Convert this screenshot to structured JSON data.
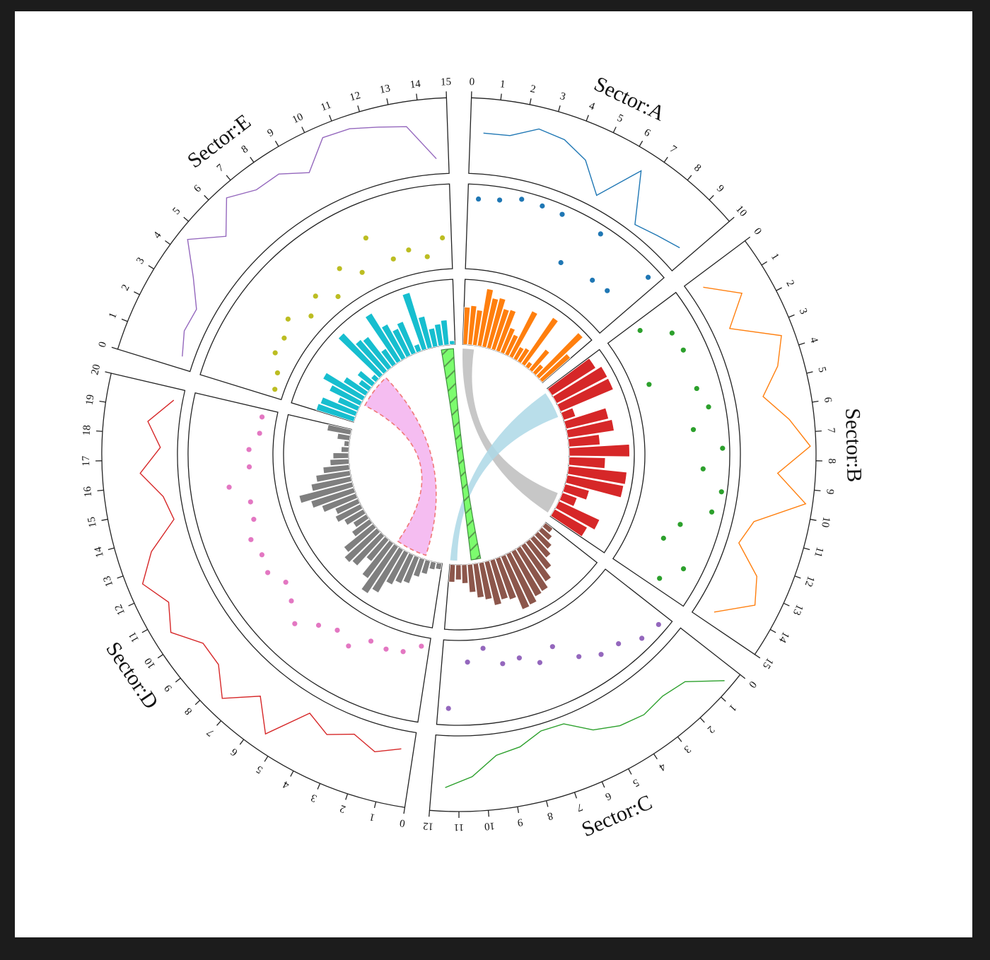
{
  "chart_data": {
    "type": "circos",
    "title": "",
    "sectors": [
      {
        "id": "A",
        "label": "Sector:A",
        "range": [
          0,
          10
        ],
        "ticks": [
          "0",
          "1",
          "2",
          "3",
          "4",
          "5",
          "6",
          "7",
          "8",
          "9",
          "10"
        ],
        "colors": {
          "line": "#1f77b4",
          "points": "#1f77b4",
          "bars": "#ff7f0e"
        },
        "line": {
          "x": [
            0.5,
            1.5,
            2.5,
            3.5,
            4.5,
            5.5,
            6.5,
            7.5,
            8.5,
            9.5
          ],
          "y": [
            55,
            56,
            75,
            70,
            52,
            10,
            78,
            4,
            13,
            24
          ]
        },
        "points": {
          "x": [
            0.5,
            1.5,
            2.5,
            3.5,
            4.5,
            5.5,
            6.5,
            7.5,
            8.5,
            9.5
          ],
          "y": [
            88,
            90,
            97,
            96,
            95,
            35,
            96,
            38,
            40,
            92
          ]
        },
        "bars": {
          "values": [
            60,
            63,
            57,
            93,
            80,
            83,
            68,
            70,
            43,
            35,
            82,
            22,
            25,
            90,
            10,
            42,
            18,
            97,
            60
          ]
        }
      },
      {
        "id": "B",
        "label": "Sector:B",
        "range": [
          0,
          15
        ],
        "ticks": [
          "0",
          "1",
          "2",
          "3",
          "4",
          "5",
          "6",
          "7",
          "8",
          "9",
          "10",
          "11",
          "12",
          "13",
          "14",
          "15"
        ],
        "colors": {
          "line": "#ff7f0e",
          "points": "#2ca02c",
          "bars": "#d62728"
        },
        "line": {
          "x": [
            0.5,
            1.5,
            2.5,
            3.5,
            4.5,
            5.5,
            6.5,
            7.5,
            8.5,
            9.5,
            10.5,
            11.5,
            12.5,
            13.5,
            14.5
          ],
          "y": [
            14,
            60,
            18,
            88,
            68,
            35,
            70,
            100,
            50,
            98,
            24,
            10,
            54,
            70,
            20
          ]
        },
        "points": {
          "x": [
            0.5,
            1.5,
            2.5,
            3.5,
            4.5,
            5.5,
            6.5,
            7.5,
            8.5,
            9.5,
            10.5,
            11.5,
            12.5,
            13.5,
            14.5
          ],
          "y": [
            38,
            73,
            76,
            15,
            75,
            85,
            60,
            98,
            72,
            100,
            92,
            55,
            40,
            82,
            60
          ]
        },
        "bars": {
          "values": [
            83,
            92,
            92,
            20,
            70,
            75,
            50,
            97,
            58,
            94,
            92,
            40,
            25,
            72,
            60
          ]
        }
      },
      {
        "id": "C",
        "label": "Sector:C",
        "range": [
          0,
          12
        ],
        "ticks": [
          "0",
          "1",
          "2",
          "3",
          "4",
          "5",
          "6",
          "7",
          "8",
          "9",
          "10",
          "11",
          "12"
        ],
        "colors": {
          "line": "#2ca02c",
          "points": "#9467bd",
          "bars": "#8c564b"
        },
        "line": {
          "x": [
            0.5,
            1.5,
            2.5,
            3.5,
            4.5,
            5.5,
            6.5,
            7.5,
            8.5,
            9.5,
            10.5,
            11.5
          ],
          "y": [
            96,
            52,
            45,
            50,
            44,
            30,
            3,
            2,
            18,
            25,
            55,
            72
          ]
        },
        "points": {
          "x": [
            0.5,
            1.5,
            2.5,
            3.5,
            4.5,
            5.5,
            6.5,
            7.5,
            8.5,
            9.5,
            10.5,
            11.5
          ],
          "y": [
            96,
            92,
            76,
            73,
            59,
            30,
            43,
            28,
            30,
            5,
            22,
            85
          ]
        },
        "bars": {
          "values": [
            15,
            22,
            31,
            40,
            55,
            70,
            80,
            82,
            90,
            92,
            70,
            66,
            72,
            60,
            55,
            45,
            30,
            24,
            28
          ]
        }
      },
      {
        "id": "D",
        "label": "Sector:D",
        "range": [
          0,
          20
        ],
        "ticks": [
          "0",
          "1",
          "2",
          "3",
          "4",
          "5",
          "6",
          "7",
          "8",
          "9",
          "10",
          "11",
          "12",
          "13",
          "14",
          "15",
          "16",
          "17",
          "18",
          "19",
          "20"
        ],
        "colors": {
          "line": "#d62728",
          "points": "#e377c2",
          "bars": "#7f7f7f"
        },
        "line": {
          "x": [
            0.5,
            1.5,
            2.5,
            3.5,
            4.5,
            5.5,
            6.5,
            7.5,
            8.5,
            9.5,
            10.5,
            11.5,
            12.5,
            13.5,
            14.5,
            15.5,
            16.5,
            17.5,
            18.5,
            19.5
          ],
          "y": [
            20,
            34,
            18,
            35,
            18,
            82,
            40,
            82,
            50,
            48,
            80,
            60,
            85,
            55,
            8,
            18,
            50,
            18,
            40,
            5
          ]
        },
        "points": {
          "x": [
            0.5,
            1.5,
            2.5,
            3.5,
            4.5,
            5.5,
            6.5,
            7.5,
            8.5,
            9.5,
            10.5,
            11.5,
            12.5,
            13.5,
            14.5,
            15.5,
            16.5,
            17.5,
            18.5,
            19.5
          ],
          "y": [
            5,
            18,
            22,
            20,
            40,
            30,
            40,
            60,
            42,
            32,
            45,
            40,
            45,
            32,
            30,
            55,
            25,
            25,
            12,
            12
          ]
        },
        "bars": {
          "values": [
            10,
            12,
            22,
            30,
            45,
            50,
            58,
            80,
            90,
            70,
            45,
            65,
            70,
            60,
            35,
            25,
            35,
            45,
            40,
            58,
            72,
            88,
            65,
            55,
            42,
            30,
            25,
            12,
            8,
            20,
            38
          ]
        }
      },
      {
        "id": "E",
        "label": "Sector:E",
        "range": [
          0,
          15
        ],
        "ticks": [
          "0",
          "1",
          "2",
          "3",
          "4",
          "5",
          "6",
          "7",
          "8",
          "9",
          "10",
          "11",
          "12",
          "13",
          "14",
          "15"
        ],
        "colors": {
          "line": "#9467bd",
          "points": "#bcbd22",
          "bars": "#17becf"
        },
        "line": {
          "x": [
            0.5,
            1.5,
            2.5,
            3.5,
            4.5,
            5.5,
            6.5,
            7.5,
            8.5,
            9.5,
            10.5,
            11.5,
            12.5,
            13.5,
            14.5
          ],
          "y": [
            10,
            22,
            20,
            50,
            92,
            50,
            92,
            72,
            72,
            50,
            90,
            88,
            78,
            70,
            15
          ]
        },
        "points": {
          "x": [
            0.5,
            1.5,
            2.5,
            3.5,
            4.5,
            5.5,
            6.5,
            7.5,
            8.5,
            9.5,
            10.5,
            11.5,
            12.5,
            13.5,
            14.5
          ],
          "y": [
            5,
            10,
            25,
            25,
            36,
            15,
            30,
            10,
            40,
            20,
            60,
            20,
            26,
            12,
            35
          ]
        },
        "bars": {
          "values": [
            63,
            60,
            35,
            55,
            73,
            42,
            20,
            30,
            10,
            92,
            66,
            62,
            30,
            90,
            62,
            48,
            55,
            12,
            95,
            52,
            30,
            35,
            40,
            6
          ]
        }
      }
    ],
    "links": [
      {
        "from": {
          "sector": "A",
          "range": [
            0,
            1.3
          ]
        },
        "to": {
          "sector": "B",
          "range": [
            12.3,
            14.8
          ]
        },
        "color": "#bdbdbd",
        "style": "solid"
      },
      {
        "from": {
          "sector": "B",
          "range": [
            0.3,
            3.4
          ]
        },
        "to": {
          "sector": "C",
          "range": [
            11.2,
            12
          ]
        },
        "color": "#add8e6",
        "style": "solid"
      },
      {
        "from": {
          "sector": "E",
          "range": [
            13.4,
            14.8
          ]
        },
        "to": {
          "sector": "C",
          "range": [
            8.5,
            9.6
          ]
        },
        "color": "#66ff66",
        "style": "hatched"
      },
      {
        "from": {
          "sector": "E",
          "range": [
            2.2,
            6.2
          ]
        },
        "to": {
          "sector": "D",
          "range": [
            2.0,
            5.6
          ]
        },
        "color": "#f4b6f0",
        "style": "dashed"
      }
    ]
  }
}
